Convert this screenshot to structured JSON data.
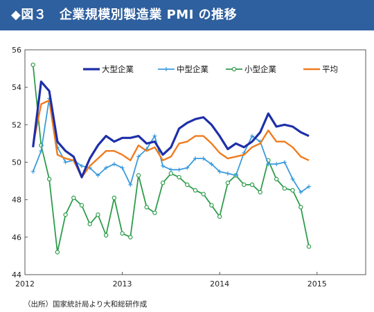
{
  "title": "◆図３　企業規模別製造業 PMI の推移",
  "source": "（出所）国家統計局より大和総研作成",
  "chart_data": {
    "type": "line",
    "x_start": "2012-02",
    "x_tick_labels": [
      "2012",
      "2013",
      "2014",
      "2015"
    ],
    "x_tick_values": [
      2012,
      2013,
      2014,
      2015
    ],
    "xlim": [
      2012,
      2015.5
    ],
    "ylim": [
      44,
      56
    ],
    "y_ticks": [
      44,
      46,
      48,
      50,
      52,
      54,
      56
    ],
    "grid": false,
    "legend_position": "top",
    "series": [
      {
        "name": "大型企業",
        "color": "#1d2fa8",
        "marker": "none",
        "values": [
          50.8,
          54.3,
          53.8,
          51.1,
          50.6,
          50.3,
          49.2,
          50.2,
          50.9,
          51.4,
          51.1,
          51.3,
          51.3,
          51.4,
          51.0,
          51.1,
          50.4,
          50.8,
          51.8,
          52.1,
          52.3,
          52.4,
          52.0,
          51.4,
          50.7,
          51.0,
          50.8,
          51.1,
          51.6,
          52.6,
          51.9,
          52.0,
          51.9,
          51.6,
          51.4
        ]
      },
      {
        "name": "中型企業",
        "color": "#3a9bdc",
        "marker": "plus",
        "values": [
          49.5,
          50.6,
          53.4,
          50.8,
          50.0,
          50.1,
          49.8,
          49.7,
          49.3,
          49.7,
          49.9,
          49.7,
          48.8,
          50.3,
          50.7,
          51.4,
          49.8,
          49.6,
          49.6,
          49.7,
          50.2,
          50.2,
          49.9,
          49.5,
          49.4,
          49.3,
          50.5,
          51.4,
          51.1,
          49.9,
          49.9,
          50.0,
          49.1,
          48.4,
          48.7
        ]
      },
      {
        "name": "小型企業",
        "color": "#2e9c4b",
        "marker": "circle",
        "values": [
          55.2,
          50.9,
          49.1,
          45.2,
          47.2,
          48.1,
          47.7,
          46.7,
          47.2,
          46.1,
          48.1,
          46.2,
          46.0,
          49.3,
          47.6,
          47.3,
          48.9,
          49.4,
          49.2,
          48.8,
          48.5,
          48.3,
          47.7,
          47.1,
          48.9,
          49.3,
          48.8,
          48.8,
          48.4,
          50.1,
          49.1,
          48.6,
          48.5,
          47.6,
          45.5
        ]
      },
      {
        "name": "平均",
        "color": "#f07b1d",
        "marker": "none",
        "values": [
          50.9,
          53.1,
          53.3,
          50.4,
          50.2,
          50.1,
          49.2,
          49.8,
          50.2,
          50.6,
          50.6,
          50.4,
          50.1,
          50.9,
          50.6,
          50.8,
          50.1,
          50.3,
          51.0,
          51.1,
          51.4,
          51.4,
          51.0,
          50.5,
          50.2,
          50.3,
          50.4,
          50.8,
          51.0,
          51.7,
          51.1,
          51.1,
          50.8,
          50.3,
          50.1
        ]
      }
    ]
  }
}
